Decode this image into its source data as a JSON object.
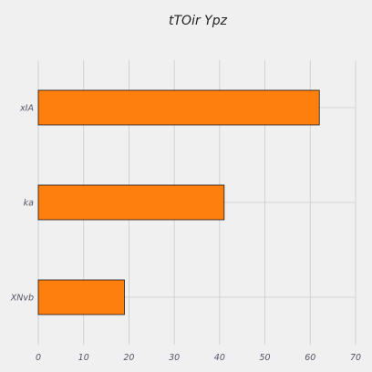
{
  "chart_data": {
    "type": "bar",
    "orientation": "horizontal",
    "title": "tTOir  Ypz",
    "xlabel": "",
    "ylabel": "",
    "categories": [
      "xIA",
      "ka",
      "XNvb"
    ],
    "values": [
      62,
      41,
      19
    ],
    "xlim": [
      0,
      70
    ],
    "xticks": [
      0,
      10,
      20,
      30,
      40,
      50,
      60,
      70
    ],
    "grid": true,
    "bar_color": "#ff7f0e",
    "bar_edge_color": "#1a1a1a",
    "background_color": "#f0f0f0",
    "grid_color": "#cbcbcb"
  }
}
